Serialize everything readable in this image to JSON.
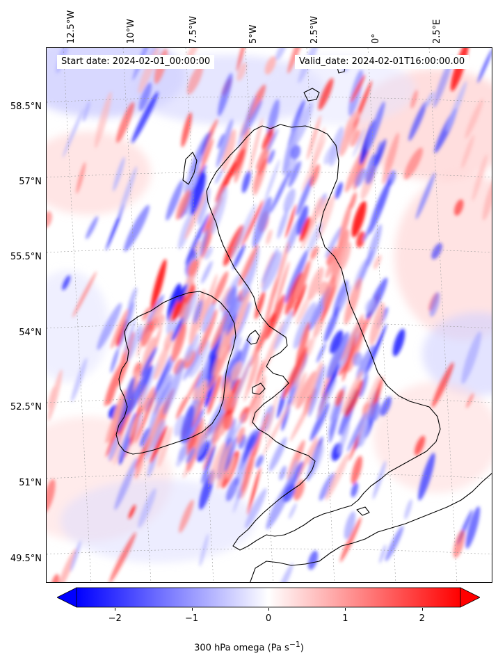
{
  "header": {
    "start_date": "Start date: 2024-02-01_00:00:00",
    "valid_date": "Valid_date: 2024-02-01T16:00:00.00"
  },
  "axes": {
    "lon_labels": [
      "12.5°W",
      "10°W",
      "7.5°W",
      "5°W",
      "2.5°W",
      "0°",
      "2.5°E"
    ],
    "lat_labels": [
      "58.5°N",
      "57°N",
      "55.5°N",
      "54°N",
      "52.5°N",
      "51°N",
      "49.5°N"
    ]
  },
  "colorbar": {
    "ticks": [
      "−2",
      "−1",
      "0",
      "1",
      "2"
    ],
    "tick_values": [
      -2,
      -1,
      0,
      1,
      2
    ],
    "range": [
      -2.5,
      2.5
    ],
    "extend": "both",
    "label": "300 hPa omega (Pa s",
    "label_sup": "−1",
    "label_end": ")",
    "colormap": "bwr",
    "low_color": "#0000ff",
    "mid_color": "#ffffff",
    "high_color": "#ff0000"
  },
  "map": {
    "field": "300 hPa omega",
    "coastline_color": "#000000",
    "gridline_color": "#9a9a9a"
  }
}
